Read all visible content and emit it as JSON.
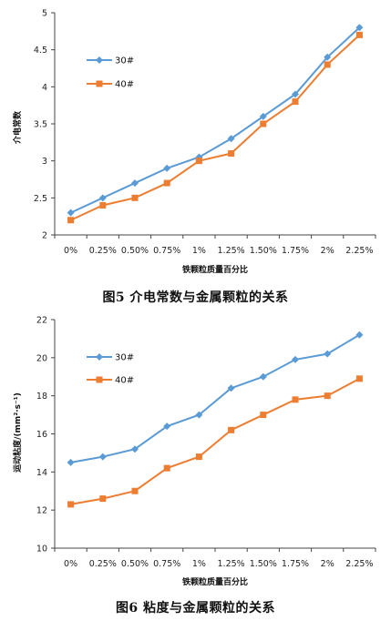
{
  "figures": [
    {
      "caption": "图5   介电常数与金属颗粒的关系"
    },
    {
      "caption": "图6   粘度与金属颗粒的关系"
    }
  ],
  "colors": {
    "series_30": "#5b9bd5",
    "series_40": "#ed7d31",
    "axis": "#444444"
  },
  "chart_data": [
    {
      "type": "line",
      "categories": [
        "0%",
        "0.25%",
        "0.50%",
        "0.75%",
        "1%",
        "1.25%",
        "1.50%",
        "1.75%",
        "2%",
        "2.25%"
      ],
      "xlabel": "铁颗粒质量百分比",
      "ylabel": "介电常数",
      "ylim": [
        2,
        5
      ],
      "yticks": [
        "2",
        "2.5",
        "3",
        "3.5",
        "4",
        "4.5",
        "5"
      ],
      "legend_position": "top-left",
      "grid": false,
      "series": [
        {
          "name": "30#",
          "marker": "diamond",
          "values": [
            2.3,
            2.5,
            2.7,
            2.9,
            3.05,
            3.3,
            3.6,
            3.9,
            4.4,
            4.8
          ]
        },
        {
          "name": "40#",
          "marker": "square",
          "values": [
            2.2,
            2.4,
            2.5,
            2.7,
            3.0,
            3.1,
            3.5,
            3.8,
            4.3,
            4.7
          ]
        }
      ]
    },
    {
      "type": "line",
      "categories": [
        "0%",
        "0.25%",
        "0.50%",
        "0.75%",
        "1%",
        "1.25%",
        "1.50%",
        "1.75%",
        "2%",
        "2.25%"
      ],
      "xlabel": "铁颗粒质量百分比",
      "ylabel": "运动粘度/(mm²·s⁻¹)",
      "ylim": [
        10,
        22
      ],
      "yticks": [
        "10",
        "12",
        "14",
        "16",
        "18",
        "20",
        "22"
      ],
      "legend_position": "top-left",
      "grid": false,
      "series": [
        {
          "name": "30#",
          "marker": "diamond",
          "values": [
            14.5,
            14.8,
            15.2,
            16.4,
            17.0,
            18.4,
            19.0,
            19.9,
            20.2,
            21.2
          ]
        },
        {
          "name": "40#",
          "marker": "square",
          "values": [
            12.3,
            12.6,
            13.0,
            14.2,
            14.8,
            16.2,
            17.0,
            17.8,
            18.0,
            18.9
          ]
        }
      ]
    }
  ]
}
